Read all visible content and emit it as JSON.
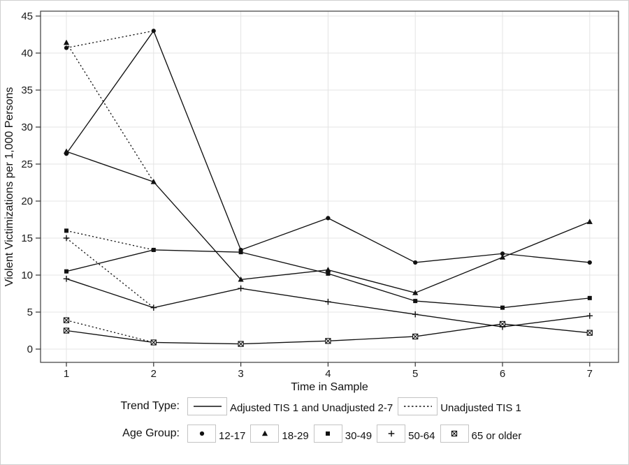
{
  "chart_data": {
    "type": "line",
    "title": "",
    "xlabel": "Time in Sample",
    "ylabel": "Violent Victimizations per 1,000 Persons",
    "x_ticks": [
      1,
      2,
      3,
      4,
      5,
      6,
      7
    ],
    "y_ticks": [
      0,
      5,
      10,
      15,
      20,
      25,
      30,
      35,
      40,
      45
    ],
    "xlim": [
      1,
      7
    ],
    "ylim": [
      0,
      45
    ],
    "grid": "on",
    "line_color": "#111111",
    "grid_color": "#e4e4e4",
    "series": [
      {
        "name": "12-17",
        "marker": "circle",
        "unadjusted_tis1": 40.7,
        "values": [
          26.4,
          43.0,
          13.4,
          17.7,
          11.7,
          12.9,
          11.7
        ]
      },
      {
        "name": "18-29",
        "marker": "triangle",
        "unadjusted_tis1": 41.4,
        "values": [
          26.7,
          22.6,
          9.4,
          10.7,
          7.6,
          12.4,
          17.2
        ]
      },
      {
        "name": "30-49",
        "marker": "square",
        "unadjusted_tis1": 16.0,
        "values": [
          10.5,
          13.4,
          13.1,
          10.2,
          6.5,
          5.6,
          6.9
        ]
      },
      {
        "name": "50-64",
        "marker": "plus",
        "unadjusted_tis1": 15.0,
        "values": [
          9.5,
          5.6,
          8.2,
          6.4,
          4.7,
          3.0,
          4.5
        ]
      },
      {
        "name": "65 or older",
        "marker": "boxed-x",
        "unadjusted_tis1": 3.9,
        "values": [
          2.5,
          0.9,
          0.7,
          1.1,
          1.7,
          3.4,
          2.2
        ]
      }
    ],
    "legend": {
      "trend_label": "Trend Type:",
      "trend_items": [
        {
          "style": "solid",
          "label": "Adjusted TIS 1 and Unadjusted 2-7"
        },
        {
          "style": "dashed",
          "label": "Unadjusted TIS 1"
        }
      ],
      "age_label": "Age Group:",
      "age_items": [
        {
          "marker": "circle",
          "label": "12-17"
        },
        {
          "marker": "triangle",
          "label": "18-29"
        },
        {
          "marker": "square",
          "label": "30-49"
        },
        {
          "marker": "plus",
          "label": "50-64"
        },
        {
          "marker": "boxed-x",
          "label": "65 or older"
        }
      ]
    }
  }
}
